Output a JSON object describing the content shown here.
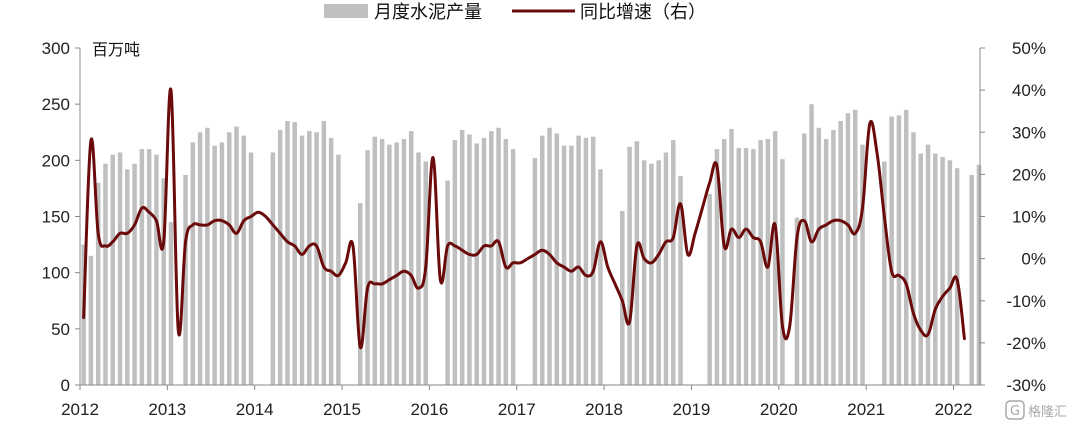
{
  "chart_data": {
    "type": "bar+line",
    "legend": {
      "placement": "top-center",
      "bar_label": "月度水泥产量",
      "line_label": "同比增速（右）"
    },
    "left_axis": {
      "unit_label": "百万吨",
      "min": 0,
      "max": 300,
      "ticks": [
        "0",
        "50",
        "100",
        "150",
        "200",
        "250",
        "300"
      ]
    },
    "right_axis": {
      "min": -30,
      "max": 50,
      "ticks": [
        "-30%",
        "-20%",
        "-10%",
        "0%",
        "10%",
        "20%",
        "30%",
        "40%",
        "50%"
      ]
    },
    "x_axis": {
      "ticks": [
        "2012",
        "2013",
        "2014",
        "2015",
        "2016",
        "2017",
        "2018",
        "2019",
        "2020",
        "2021",
        "2022"
      ]
    },
    "colors": {
      "bars": "#bfbfbf",
      "line": "#6b0a0a",
      "axis": "#888888"
    },
    "series": [
      {
        "name": "月度水泥产量",
        "kind": "bar",
        "values": [
          [
            125,
            115,
            180,
            197,
            205,
            207,
            192,
            197,
            210,
            210,
            205,
            184
          ],
          [
            145,
            null,
            187,
            216,
            225,
            229,
            213,
            216,
            225,
            230,
            222,
            207
          ],
          [
            null,
            null,
            207,
            227,
            235,
            234,
            222,
            226,
            225,
            235,
            220,
            205
          ],
          [
            null,
            null,
            162,
            209,
            221,
            219,
            214,
            216,
            219,
            226,
            207,
            199
          ],
          [
            null,
            null,
            182,
            218,
            227,
            223,
            215,
            220,
            226,
            229,
            219,
            210
          ],
          [
            null,
            null,
            202,
            222,
            229,
            224,
            213,
            213,
            222,
            220,
            221,
            192
          ],
          [
            null,
            null,
            155,
            212,
            217,
            200,
            197,
            200,
            207,
            218,
            186,
            null
          ],
          [
            null,
            null,
            170,
            210,
            219,
            228,
            211,
            211,
            210,
            218,
            219,
            226
          ],
          [
            201,
            null,
            149,
            224,
            250,
            229,
            219,
            227,
            235,
            242,
            245,
            214
          ],
          [
            null,
            null,
            199,
            239,
            240,
            245,
            225,
            206,
            214,
            206,
            203,
            200
          ],
          [
            193,
            null,
            187,
            196,
            null,
            null,
            null,
            null,
            null,
            null,
            null,
            null
          ]
        ],
        "year_start": 2012
      },
      {
        "name": "同比增速（右）",
        "kind": "line",
        "values": [
          [
            -14,
            28,
            6,
            3,
            4,
            6,
            6,
            8,
            12,
            11,
            9,
            4
          ],
          [
            40,
            -17,
            4,
            8,
            8,
            8,
            9,
            9,
            8,
            6,
            9,
            10
          ],
          [
            11,
            10,
            8,
            6,
            4,
            3,
            1,
            3,
            3,
            -2,
            -3,
            -4
          ],
          [
            -1,
            3,
            -21,
            -7,
            -6,
            -6,
            -5,
            -4,
            -3,
            -4,
            -7,
            -2
          ],
          [
            24,
            -5,
            3,
            3,
            2,
            1,
            1,
            3,
            3,
            4,
            -2,
            -1
          ],
          [
            -1,
            0,
            1,
            2,
            1,
            -1,
            -2,
            -3,
            -2,
            -4,
            -3,
            4
          ],
          [
            -2,
            -6,
            -10,
            -15,
            3,
            0,
            -1,
            1,
            4,
            5,
            13,
            1
          ],
          [
            6,
            12,
            18,
            22,
            3,
            7,
            5,
            7,
            5,
            4,
            -2,
            8
          ],
          [
            -16,
            -16,
            5,
            9,
            4,
            7,
            8,
            9,
            9,
            8,
            6,
            12
          ],
          [
            32,
            25,
            10,
            -3,
            -4,
            -6,
            -13,
            -17,
            -18,
            -12,
            -9,
            -7
          ],
          [
            -5,
            -19,
            null,
            null,
            null,
            null,
            null,
            null,
            null,
            null,
            null,
            null
          ]
        ],
        "year_start": 2012
      }
    ]
  },
  "watermark": "格隆汇"
}
